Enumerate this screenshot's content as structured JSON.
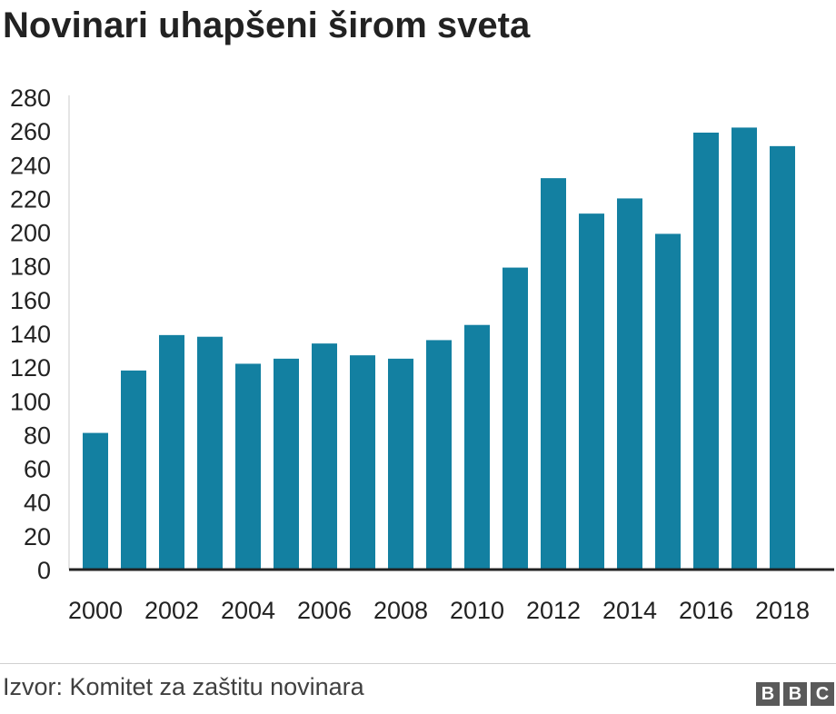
{
  "title": "Novinari uhapšeni širom sveta",
  "source": "Izvor: Komitet za zaštitu novinara",
  "logo": [
    "B",
    "B",
    "C"
  ],
  "colors": {
    "bar": "#1380A1",
    "axis": "#222222",
    "grid": "#cbcbcb",
    "text": "#222222"
  },
  "chart_data": {
    "type": "bar",
    "title": "Novinari uhapšeni širom sveta",
    "xlabel": "",
    "ylabel": "",
    "categories": [
      "2000",
      "2001",
      "2002",
      "2003",
      "2004",
      "2005",
      "2006",
      "2007",
      "2008",
      "2009",
      "2010",
      "2011",
      "2012",
      "2013",
      "2014",
      "2015",
      "2016",
      "2017",
      "2018"
    ],
    "values": [
      81,
      118,
      139,
      138,
      122,
      125,
      134,
      127,
      125,
      136,
      145,
      179,
      232,
      211,
      220,
      199,
      259,
      262,
      251
    ],
    "x_tick_labels": [
      "2000",
      "2002",
      "2004",
      "2006",
      "2008",
      "2010",
      "2012",
      "2014",
      "2016",
      "2018"
    ],
    "y_ticks": [
      0,
      20,
      40,
      60,
      80,
      100,
      120,
      140,
      160,
      180,
      200,
      220,
      240,
      260,
      280
    ],
    "ylim": [
      0,
      280
    ],
    "grid": false,
    "legend": "none"
  }
}
